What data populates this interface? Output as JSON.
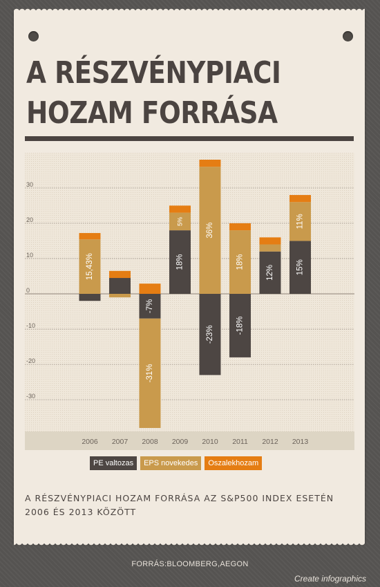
{
  "title_lines": [
    "A RÉSZVÉNYPIACI",
    "HOZAM FORRÁSA"
  ],
  "subtitle_lines": [
    "A RÉSZVÉNYPIACI HOZAM FORRÁSA AZ S&P500 INDEX ESETÉN",
    "2006 ÉS 2013 KÖZÖTT"
  ],
  "source": "FORRÁS:BLOOMBERG,AEGON",
  "credit": "Create infographics",
  "colors": {
    "pe": "#4d4643",
    "eps": "#c99a4c",
    "dividend": "#e57d13",
    "paper": "#f1eae0",
    "text": "#4b4441"
  },
  "chart_data": {
    "type": "bar",
    "stacked": true,
    "categories": [
      "2006",
      "2007",
      "2008",
      "2009",
      "2010",
      "2011",
      "2012",
      "2013"
    ],
    "series": [
      {
        "name": "PE valtozas",
        "color": "#4d4643",
        "values": [
          -2,
          4.5,
          -7,
          18,
          -23,
          -18,
          12,
          15
        ]
      },
      {
        "name": "EPS novekedes",
        "color": "#c99a4c",
        "values": [
          15.43,
          -1,
          -31,
          5,
          36,
          18,
          2,
          11
        ]
      },
      {
        "name": "Oszalekhozam",
        "color": "#e57d13",
        "values": [
          1.8,
          2,
          2.9,
          2,
          2,
          2,
          2,
          2
        ]
      }
    ],
    "labels": {
      "PE valtozas": [
        "",
        "",
        "-7%",
        "18%",
        "-23%",
        "-18%",
        "12%",
        "15%"
      ],
      "EPS novekedes": [
        "15,43%",
        "",
        "-31%",
        "5%",
        "36%",
        "18%",
        "",
        "11%"
      ]
    },
    "yticks": [
      30,
      20,
      10,
      0,
      -10,
      -20,
      -30
    ],
    "ylim": [
      -38,
      38
    ],
    "grid": true,
    "legend_position": "bottom"
  }
}
